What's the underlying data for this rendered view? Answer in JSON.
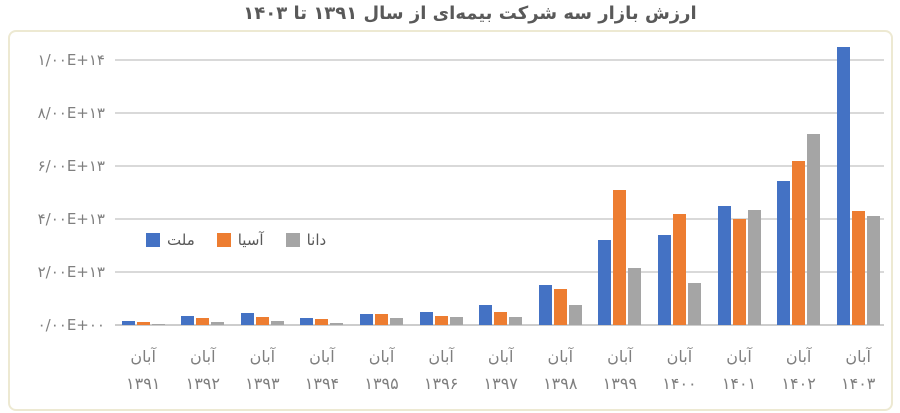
{
  "chart_data": {
    "type": "bar",
    "title": "ارزش بازار سه شرکت بیمه‌ای از سال ۱۳۹۱ تا ۱۴۰۳",
    "direction": "rtl",
    "month_label": "آبان",
    "categories": [
      "۱۳۹۱",
      "۱۳۹۲",
      "۱۳۹۳",
      "۱۳۹۴",
      "۱۳۹۵",
      "۱۳۹۶",
      "۱۳۹۷",
      "۱۳۹۸",
      "۱۳۹۹",
      "۱۴۰۰",
      "۱۴۰۱",
      "۱۴۰۲",
      "۱۴۰۳"
    ],
    "series": [
      {
        "id": "mellat",
        "name": "ملت",
        "color": "#4472C4",
        "values": [
          1500000000000.0,
          3500000000000.0,
          4500000000000.0,
          2500000000000.0,
          4200000000000.0,
          4800000000000.0,
          7500000000000.0,
          15000000000000.0,
          32000000000000.0,
          34000000000000.0,
          45000000000000.0,
          54500000000000.0,
          105000000000000.0
        ]
      },
      {
        "id": "asia",
        "name": "آسیا",
        "color": "#ED7D31",
        "values": [
          1000000000000.0,
          2500000000000.0,
          3000000000000.0,
          2300000000000.0,
          4000000000000.0,
          3500000000000.0,
          5000000000000.0,
          13500000000000.0,
          51000000000000.0,
          42000000000000.0,
          40000000000000.0,
          62000000000000.0,
          43000000000000.0
        ]
      },
      {
        "id": "dana",
        "name": "دانا",
        "color": "#A5A5A5",
        "values": [
          400000000000.0,
          1200000000000.0,
          1600000000000.0,
          800000000000.0,
          2700000000000.0,
          3000000000000.0,
          3200000000000.0,
          7500000000000.0,
          21500000000000.0,
          16000000000000.0,
          43500000000000.0,
          72000000000000.0,
          41000000000000.0
        ]
      }
    ],
    "y_axis": {
      "ticks": [
        {
          "label": "۰/۰۰E+۰۰",
          "value": 0
        },
        {
          "label": "۲/۰۰E+۱۳",
          "value": 20000000000000.0
        },
        {
          "label": "۴/۰۰E+۱۳",
          "value": 40000000000000.0
        },
        {
          "label": "۶/۰۰E+۱۳",
          "value": 60000000000000.0
        },
        {
          "label": "۸/۰۰E+۱۳",
          "value": 80000000000000.0
        },
        {
          "label": "۱/۰۰E+۱۴",
          "value": 100000000000000.0
        }
      ],
      "gridline_max": 100000000000000.0
    },
    "xlabel": "",
    "ylabel": "",
    "grid": true,
    "legend_position": "inside-left",
    "colors": {
      "gridline": "#D9D9D9",
      "axis_line": "#CDCDCD",
      "tick_text": "#7F7F7F",
      "title_text": "#595959",
      "chart_border": "#EDE9D2",
      "background": "#FFFFFF"
    }
  }
}
